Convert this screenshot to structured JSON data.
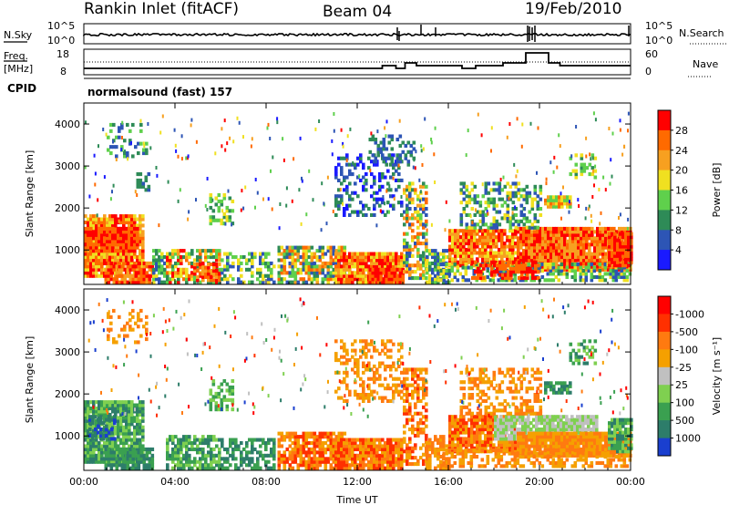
{
  "header": {
    "station": "Rankin Inlet (fitACF)",
    "beam": "Beam 04",
    "date": "19/Feb/2010"
  },
  "strips": {
    "nsky_label": "N.Sky",
    "nsky_ticks": [
      "10^5",
      "10^0"
    ],
    "nsearch_label": "N.Search",
    "nsearch_ticks": [
      "10^5",
      "10^0"
    ],
    "freq_label_1": "Freq.",
    "freq_label_2": "[MHz]",
    "freq_ticks": [
      "18",
      "8"
    ],
    "nave_label": "Nave",
    "nave_ticks": [
      "60",
      "0"
    ],
    "cpid_label": "CPID",
    "cpid_text": "normalsound (fast) 157"
  },
  "chart_data": [
    {
      "type": "heatmap",
      "panel": "power",
      "ylabel": "Slant Range [km]",
      "xlabel": "Time UT",
      "ylim": [
        180,
        4500
      ],
      "yticks": [
        1000,
        2000,
        3000,
        4000
      ],
      "xticks": [
        "00:00",
        "04:00",
        "08:00",
        "12:00",
        "16:00",
        "20:00",
        "00:00"
      ],
      "xlim_hours": [
        0,
        24
      ],
      "colorbar_label": "Power [dB]",
      "colorbar_ticks": [
        "4",
        "8",
        "12",
        "16",
        "20",
        "24",
        "28"
      ],
      "colorbar_colors": [
        "#1a1aff",
        "#2d55b5",
        "#2e8b57",
        "#5fd04c",
        "#f0e020",
        "#f7a020",
        "#ff6a00",
        "#ff0000"
      ]
    },
    {
      "type": "heatmap",
      "panel": "velocity",
      "ylabel": "Slant Range [km]",
      "xlabel": "Time UT",
      "ylim": [
        180,
        4500
      ],
      "yticks": [
        1000,
        2000,
        3000,
        4000
      ],
      "xticks": [
        "00:00",
        "04:00",
        "08:00",
        "12:00",
        "16:00",
        "20:00",
        "00:00"
      ],
      "xlim_hours": [
        0,
        24
      ],
      "colorbar_label": "Velocity [m s⁻¹]",
      "colorbar_ticks": [
        "1000",
        "500",
        "100",
        "25",
        "-25",
        "-100",
        "-500",
        "-1000"
      ],
      "colorbar_colors": [
        "#1a3fcf",
        "#2d7d6a",
        "#3aa050",
        "#7fd050",
        "#c0c0c0",
        "#f5a000",
        "#ff7a10",
        "#ff3000",
        "#ff0000"
      ]
    }
  ]
}
